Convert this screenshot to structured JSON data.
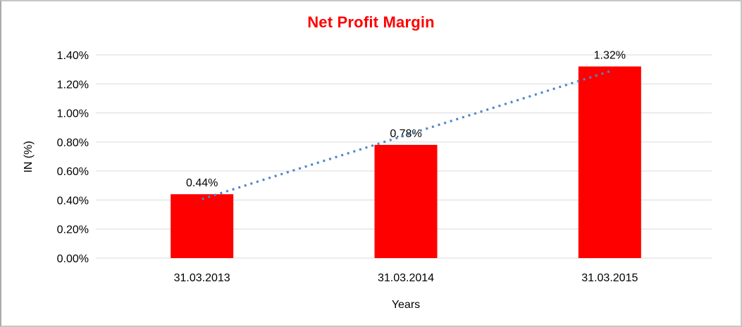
{
  "chart_data": {
    "type": "bar",
    "title": "Net Profit Margin",
    "title_color": "#ff0000",
    "categories": [
      "31.03.2013",
      "31.03.2014",
      "31.03.2015"
    ],
    "values": [
      0.44,
      0.78,
      1.32
    ],
    "data_labels": [
      "0.44%",
      "0.78%",
      "1.32%"
    ],
    "xlabel": "Years",
    "ylabel": "IN (%)",
    "ylim": [
      0,
      1.4
    ],
    "ytick_step": 0.2,
    "ytick_labels": [
      "0.00%",
      "0.20%",
      "0.40%",
      "0.60%",
      "0.80%",
      "1.00%",
      "1.20%",
      "1.40%"
    ],
    "bar_color": "#ff0000",
    "gridline_color": "#d9d9d9",
    "grid": true,
    "legend_position": "none",
    "trendline": {
      "type": "linear",
      "style": "dotted",
      "color": "#4f86c9"
    }
  }
}
